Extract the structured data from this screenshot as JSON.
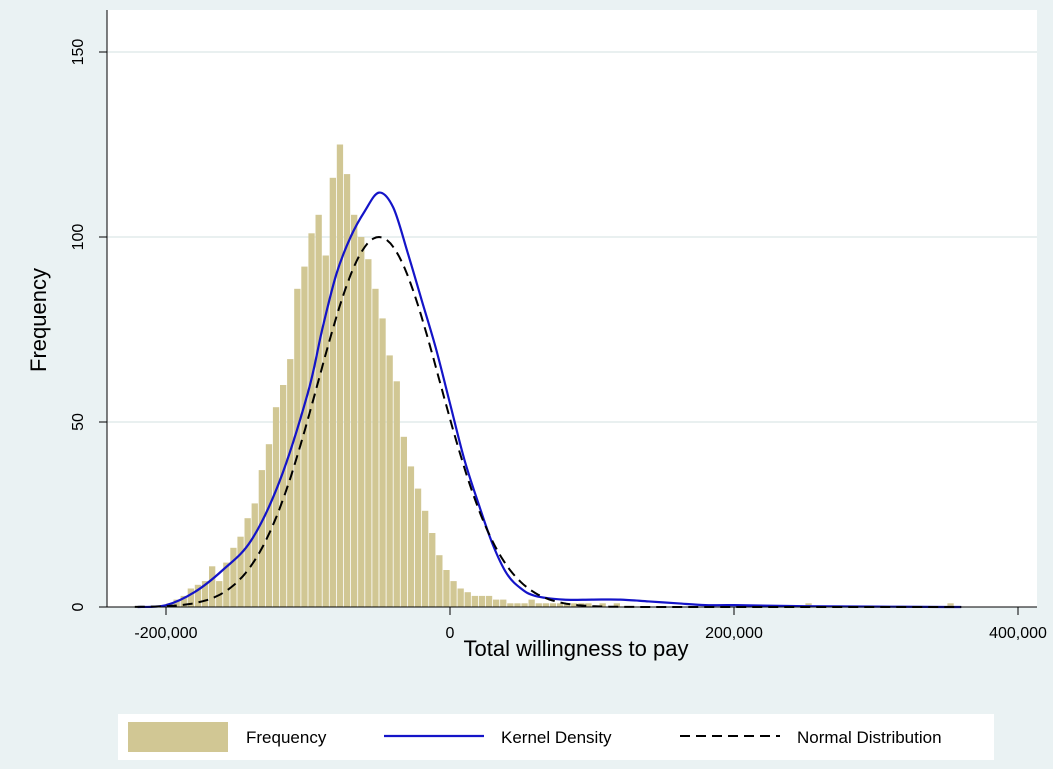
{
  "chart_data": {
    "type": "bar",
    "xlabel": "Total willingness to pay",
    "ylabel": "Frequency",
    "xlim": [
      -222000,
      400000
    ],
    "ylim": [
      0,
      150
    ],
    "x_ticks": [
      -200000,
      0,
      200000,
      400000
    ],
    "x_tick_labels": [
      "-200,000",
      "0",
      "200,000",
      "400,000"
    ],
    "y_ticks": [
      0,
      50,
      100,
      150
    ],
    "y_tick_labels": [
      "0",
      "50",
      "100",
      "150"
    ],
    "grid": "horizontal",
    "legend_position": "bottom",
    "colors": {
      "background": "#eaf2f3",
      "plot_background": "#ffffff",
      "bars": "#d1c794",
      "kernel_density": "#1414c8",
      "normal_distribution": "#000000",
      "grid": "#e2ebec"
    },
    "histogram": {
      "name": "Frequency",
      "bin_start": -220000,
      "bin_width": 5000,
      "counts": [
        0,
        0,
        0,
        0,
        1,
        2,
        3,
        5,
        6,
        7,
        11,
        7,
        12,
        16,
        19,
        24,
        28,
        37,
        44,
        54,
        60,
        67,
        86,
        92,
        101,
        106,
        95,
        116,
        125,
        117,
        106,
        100,
        94,
        86,
        78,
        68,
        61,
        46,
        38,
        32,
        26,
        20,
        14,
        10,
        7,
        5,
        4,
        3,
        3,
        3,
        2,
        2,
        1,
        1,
        1,
        2,
        1,
        1,
        1,
        1,
        1,
        1,
        1,
        1,
        0,
        1,
        0,
        1,
        0,
        0,
        0,
        0,
        0,
        0,
        0,
        0,
        0,
        0,
        0,
        0,
        0,
        0,
        0,
        0,
        0,
        0,
        0,
        0,
        0,
        0,
        0,
        0,
        0,
        0,
        1,
        0,
        0,
        0,
        0,
        0,
        0,
        0,
        0,
        0,
        0,
        0,
        0,
        0,
        0,
        0,
        0,
        0,
        0,
        0,
        1
      ]
    },
    "series": [
      {
        "name": "Kernel Density",
        "x": [
          -220000,
          -200000,
          -180000,
          -160000,
          -140000,
          -120000,
          -100000,
          -90000,
          -80000,
          -70000,
          -60000,
          -50000,
          -40000,
          -30000,
          -20000,
          -10000,
          0,
          10000,
          20000,
          30000,
          40000,
          50000,
          60000,
          80000,
          100000,
          120000,
          140000,
          160000,
          180000,
          200000,
          250000,
          300000,
          350000,
          360000
        ],
        "y": [
          0,
          0.5,
          4,
          10,
          18,
          34,
          58,
          75,
          90,
          100,
          107,
          112,
          108,
          96,
          83,
          70,
          55,
          40,
          28,
          17,
          9,
          5,
          3,
          2,
          2,
          2,
          1.5,
          1,
          0.5,
          0.5,
          0.2,
          0.1,
          0,
          0
        ]
      },
      {
        "name": "Normal Distribution",
        "mean": -50000,
        "sd": 43000,
        "peak": 100,
        "x_range": [
          -222000,
          360000
        ]
      }
    ]
  }
}
